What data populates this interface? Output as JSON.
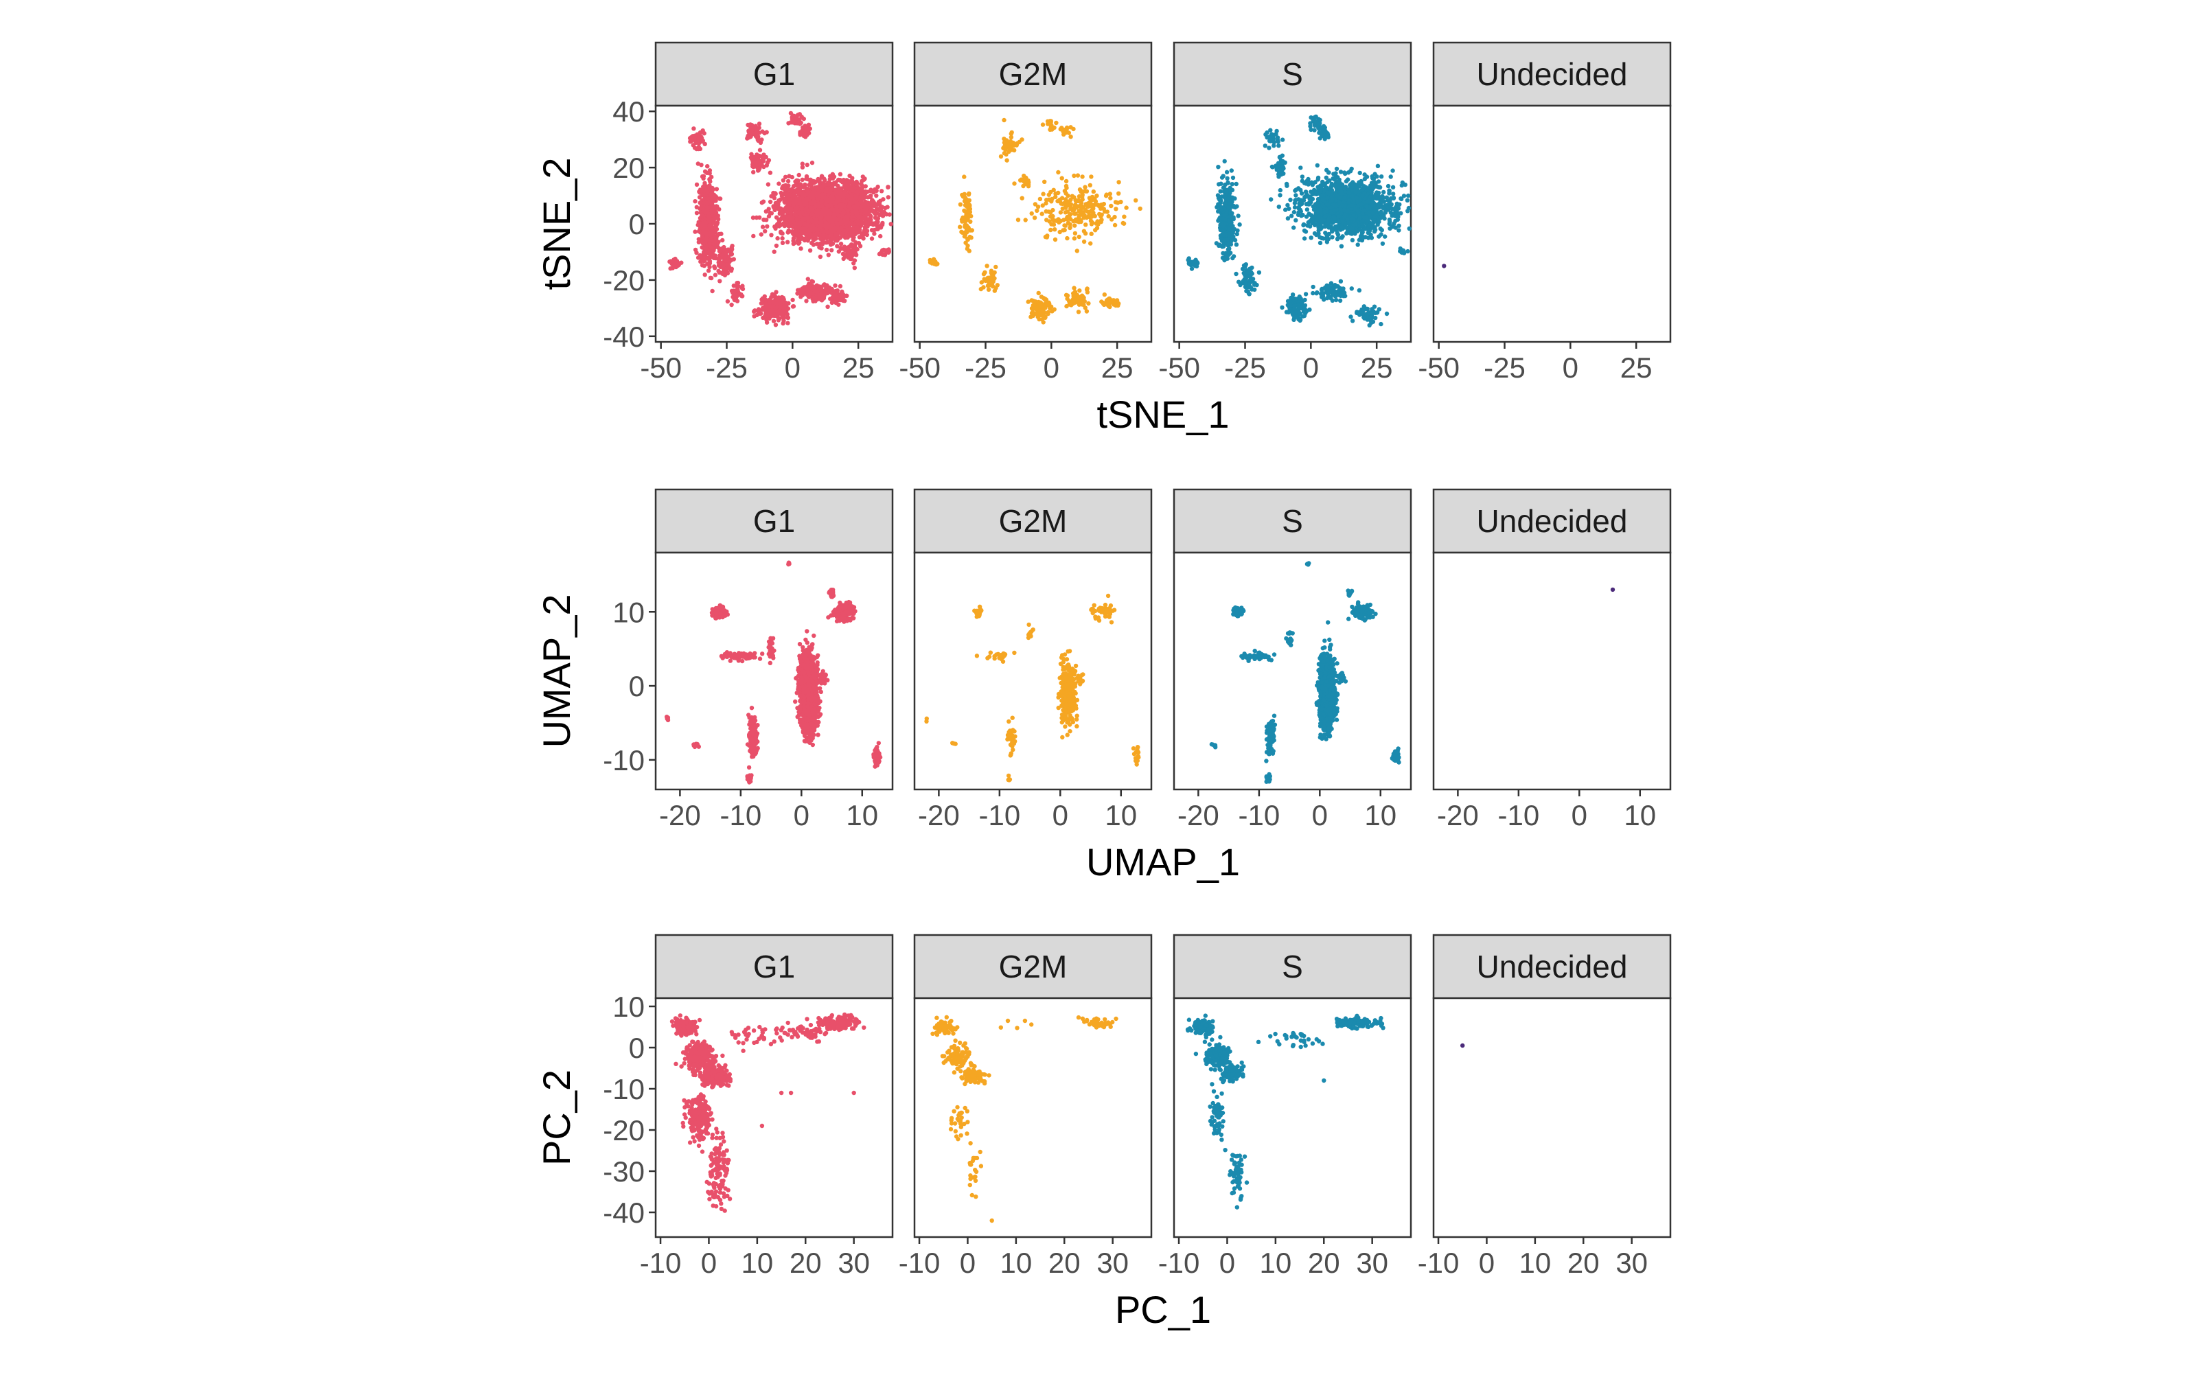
{
  "chart_data": [
    {
      "type": "scatter",
      "xlabel": "tSNE_1",
      "ylabel": "tSNE_2",
      "xlim": [
        -52,
        38
      ],
      "ylim": [
        -42,
        42
      ],
      "xticks": [
        "-50",
        "-25",
        "0",
        "25"
      ],
      "xtick_values": [
        -50,
        -25,
        0,
        25
      ],
      "yticks": [
        "-40",
        "-20",
        "0",
        "20",
        "40"
      ],
      "ytick_values": [
        -40,
        -20,
        0,
        20,
        40
      ],
      "facets": [
        "G1",
        "G2M",
        "S",
        "Undecided"
      ],
      "series": [
        {
          "name": "G1",
          "color": "#E8506A",
          "clusters": [
            [
              -32,
              0,
              3,
              12,
              600
            ],
            [
              -45,
              -14,
              2,
              1.5,
              40
            ],
            [
              -36,
              30,
              3,
              3,
              60
            ],
            [
              -14,
              33,
              3,
              3,
              60
            ],
            [
              -13,
              22,
              3,
              3,
              60
            ],
            [
              1,
              37,
              2,
              2,
              40
            ],
            [
              5,
              33,
              2,
              2,
              40
            ],
            [
              -26,
              -13,
              3,
              5,
              100
            ],
            [
              -21,
              -25,
              2,
              3,
              40
            ],
            [
              -7,
              -30,
              5,
              4,
              200
            ],
            [
              8,
              -24,
              5,
              3,
              160
            ],
            [
              17,
              -26,
              3,
              2,
              60
            ],
            [
              22,
              -10,
              3,
              3,
              60
            ],
            [
              13,
              5,
              16,
              9,
              2800
            ],
            [
              35,
              -10,
              2,
              1,
              20
            ]
          ]
        },
        {
          "name": "G2M",
          "color": "#F5A623",
          "clusters": [
            [
              -32,
              2,
              2,
              9,
              80
            ],
            [
              -45,
              -14,
              2,
              1,
              10
            ],
            [
              -16,
              28,
              3,
              4,
              40
            ],
            [
              -10,
              15,
              2,
              2,
              20
            ],
            [
              0,
              35,
              2,
              2,
              20
            ],
            [
              5,
              33,
              2,
              2,
              20
            ],
            [
              -24,
              -20,
              3,
              4,
              40
            ],
            [
              -4,
              -30,
              4,
              4,
              80
            ],
            [
              10,
              -27,
              4,
              3,
              60
            ],
            [
              22,
              -28,
              3,
              2,
              30
            ],
            [
              10,
              5,
              15,
              9,
              250
            ]
          ]
        },
        {
          "name": "S",
          "color": "#1B8AAE",
          "clusters": [
            [
              -32,
              2,
              3,
              12,
              300
            ],
            [
              -45,
              -14,
              2,
              1.5,
              20
            ],
            [
              -14,
              30,
              3,
              3,
              30
            ],
            [
              -12,
              20,
              2,
              3,
              30
            ],
            [
              2,
              36,
              2,
              2,
              30
            ],
            [
              5,
              32,
              2,
              2,
              30
            ],
            [
              -24,
              -20,
              3,
              5,
              60
            ],
            [
              -5,
              -30,
              4,
              4,
              100
            ],
            [
              8,
              -24,
              5,
              3,
              80
            ],
            [
              22,
              -32,
              4,
              3,
              60
            ],
            [
              14,
              6,
              16,
              9,
              1400
            ],
            [
              35,
              -10,
              2,
              1,
              10
            ]
          ]
        },
        {
          "name": "Undecided",
          "color": "#4B2A7A",
          "points": [
            [
              -48,
              -15
            ]
          ]
        }
      ]
    },
    {
      "type": "scatter",
      "xlabel": "UMAP_1",
      "ylabel": "UMAP_2",
      "xlim": [
        -24,
        15
      ],
      "ylim": [
        -14,
        18
      ],
      "xticks": [
        "-20",
        "-10",
        "0",
        "10"
      ],
      "xtick_values": [
        -20,
        -10,
        0,
        10
      ],
      "yticks": [
        "-10",
        "0",
        "10"
      ],
      "ytick_values": [
        -10,
        0,
        10
      ],
      "facets": [
        "G1",
        "G2M",
        "S",
        "Undecided"
      ],
      "series": [
        {
          "name": "G1",
          "color": "#E8506A",
          "clusters": [
            [
              1.2,
              -1,
              1.1,
              4,
              2500
            ],
            [
              -13.5,
              10,
              0.8,
              0.6,
              120
            ],
            [
              -10,
              4,
              2.5,
              0.4,
              80
            ],
            [
              -5,
              5,
              0.4,
              1.4,
              40
            ],
            [
              -8,
              -7,
              0.6,
              2.2,
              160
            ],
            [
              7,
              10,
              1.6,
              1,
              200
            ],
            [
              5,
              12.5,
              0.4,
              0.6,
              30
            ],
            [
              12.5,
              -9.5,
              0.5,
              1,
              80
            ],
            [
              -8.5,
              -12.5,
              0.3,
              0.5,
              20
            ],
            [
              -17.5,
              -8,
              0.4,
              0.3,
              10
            ],
            [
              3.5,
              1,
              0.5,
              0.8,
              40
            ],
            [
              -2,
              16.5,
              0.2,
              0.2,
              5
            ],
            [
              -22,
              -4.5,
              0.2,
              0.3,
              5
            ]
          ]
        },
        {
          "name": "G2M",
          "color": "#F5A623",
          "clusters": [
            [
              1.2,
              -1,
              1.1,
              4,
              300
            ],
            [
              -13.5,
              10,
              0.8,
              0.6,
              20
            ],
            [
              -10,
              4,
              2.5,
              0.4,
              20
            ],
            [
              -5,
              7,
              0.4,
              1,
              10
            ],
            [
              -8,
              -7,
              0.6,
              2.2,
              30
            ],
            [
              7,
              10,
              1.6,
              1,
              40
            ],
            [
              12.5,
              -9.5,
              0.5,
              1,
              15
            ],
            [
              -8.5,
              -12.5,
              0.3,
              0.5,
              5
            ],
            [
              -17.5,
              -8,
              0.4,
              0.3,
              3
            ],
            [
              3.5,
              1,
              0.5,
              0.8,
              10
            ],
            [
              -22,
              -4.5,
              0.2,
              0.3,
              2
            ]
          ]
        },
        {
          "name": "S",
          "color": "#1B8AAE",
          "clusters": [
            [
              1.2,
              -1,
              1.1,
              4,
              1200
            ],
            [
              -13.5,
              10,
              0.8,
              0.6,
              60
            ],
            [
              -10,
              4,
              2.5,
              0.4,
              40
            ],
            [
              -5,
              6,
              0.4,
              1.2,
              20
            ],
            [
              -8,
              -7,
              0.6,
              2.2,
              80
            ],
            [
              7,
              10,
              1.6,
              1,
              100
            ],
            [
              5,
              12.5,
              0.4,
              0.6,
              15
            ],
            [
              12.5,
              -9.5,
              0.5,
              1,
              40
            ],
            [
              -8.5,
              -12.5,
              0.3,
              0.5,
              10
            ],
            [
              -17.5,
              -8,
              0.4,
              0.3,
              5
            ],
            [
              3.5,
              1,
              0.5,
              0.8,
              20
            ],
            [
              -2,
              16.5,
              0.2,
              0.2,
              3
            ]
          ]
        },
        {
          "name": "Undecided",
          "color": "#4B2A7A",
          "points": [
            [
              5.5,
              13
            ]
          ]
        }
      ]
    },
    {
      "type": "scatter",
      "xlabel": "PC_1",
      "ylabel": "PC_2",
      "xlim": [
        -11,
        38
      ],
      "ylim": [
        -46,
        12
      ],
      "xticks": [
        "-10",
        "0",
        "10",
        "20",
        "30"
      ],
      "xtick_values": [
        -10,
        0,
        10,
        20,
        30
      ],
      "yticks": [
        "10",
        "0",
        "-10",
        "-20",
        "-30",
        "-40"
      ],
      "ytick_values": [
        10,
        0,
        -10,
        -20,
        -30,
        -40
      ],
      "facets": [
        "G1",
        "G2M",
        "S",
        "Undecided"
      ],
      "series": [
        {
          "name": "G1",
          "color": "#E8506A",
          "clusters": [
            [
              -5,
              5,
              2,
              1.5,
              200
            ],
            [
              -2,
              -2,
              2.5,
              3,
              250
            ],
            [
              1,
              -7,
              2.5,
              2,
              250
            ],
            [
              -2,
              -17,
              2,
              5,
              200
            ],
            [
              2,
              -30,
              2,
              8,
              120
            ],
            [
              10,
              3,
              6,
              2,
              40
            ],
            [
              27,
              6,
              4,
              1.5,
              150
            ],
            [
              20,
              4,
              5,
              2,
              50
            ]
          ],
          "points": [
            [
              15,
              -11
            ],
            [
              17,
              -11
            ],
            [
              30,
              -11
            ],
            [
              11,
              -19
            ]
          ]
        },
        {
          "name": "G2M",
          "color": "#F5A623",
          "clusters": [
            [
              -5,
              5,
              2,
              1.5,
              60
            ],
            [
              -2,
              -2,
              2.5,
              3,
              80
            ],
            [
              1,
              -7,
              2.5,
              2,
              80
            ],
            [
              -2,
              -18,
              1.5,
              4,
              30
            ],
            [
              1,
              -30,
              1.5,
              6,
              20
            ],
            [
              27,
              6,
              3,
              1,
              40
            ],
            [
              10,
              6,
              5,
              1.5,
              5
            ]
          ],
          "points": [
            [
              5,
              -42
            ]
          ]
        },
        {
          "name": "S",
          "color": "#1B8AAE",
          "clusters": [
            [
              -5,
              5,
              2,
              1.5,
              120
            ],
            [
              -2,
              -2,
              2.5,
              3,
              120
            ],
            [
              1,
              -6,
              2,
              2,
              80
            ],
            [
              -2,
              -17,
              1.5,
              5,
              60
            ],
            [
              2,
              -30,
              1.5,
              7,
              50
            ],
            [
              27,
              6,
              4,
              1.2,
              120
            ],
            [
              14,
              2,
              5,
              2,
              30
            ]
          ],
          "points": [
            [
              20,
              -8
            ]
          ]
        },
        {
          "name": "Undecided",
          "color": "#4B2A7A",
          "points": [
            [
              -5,
              0.5
            ]
          ]
        }
      ]
    }
  ]
}
